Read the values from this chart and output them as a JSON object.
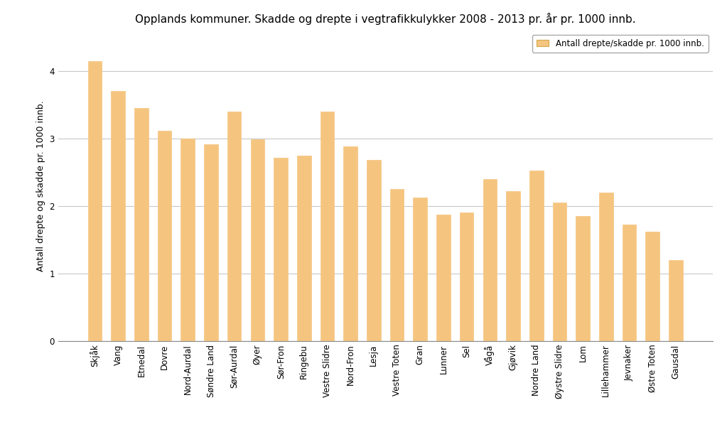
{
  "title": "Opplands kommuner. Skadde og drepte i vegtrafikkulykker 2008 - 2013 pr. år pr. 1000 innb.",
  "ylabel": "Antall drepte og skadde pr. 1000 innb.",
  "legend_label": "Antall drepte/skadde pr. 1000 innb.",
  "bar_color": "#f5c580",
  "bar_edge_color": "#f5c580",
  "background_color": "#ffffff",
  "plot_background": "#ffffff",
  "categories": [
    "Skjåk",
    "Vang",
    "Etnedal",
    "Dovre",
    "Nord-Aurdal",
    "Søndre Land",
    "Sør-Aurdal",
    "Øyer",
    "Sør-Fron",
    "Ringebu",
    "Vestre Slidre",
    "Nord-Fron",
    "Lesja",
    "Vestre Toten",
    "Gran",
    "Lunner",
    "Sel",
    "Vågå",
    "Gjøvik",
    "Nordre Land",
    "Øystre Slidre",
    "Lom",
    "Lillehammer",
    "Jevnaker",
    "Østre Toten",
    "Gausdal"
  ],
  "values": [
    4.15,
    3.7,
    3.45,
    3.12,
    3.0,
    2.92,
    3.4,
    2.99,
    2.72,
    2.75,
    3.4,
    2.88,
    2.68,
    2.25,
    2.12,
    1.87,
    1.9,
    2.4,
    2.22,
    2.52,
    2.05,
    1.85,
    2.2,
    1.72,
    1.62,
    1.2
  ],
  "ylim": [
    0,
    4.6
  ],
  "yticks": [
    0,
    1,
    2,
    3,
    4
  ],
  "grid_color": "#c8c8c8",
  "title_fontsize": 11,
  "axis_fontsize": 9,
  "tick_fontsize": 8.5,
  "legend_fontsize": 8.5,
  "bar_width": 0.6
}
